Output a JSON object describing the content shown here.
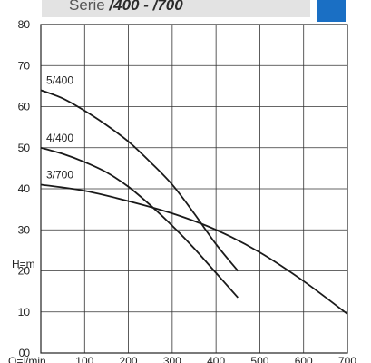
{
  "header": {
    "prefix": "Serie ",
    "model_range": "/400 - /700",
    "accent_color": "#1a6fc4"
  },
  "chart_data": {
    "type": "line",
    "title": "",
    "xlabel": "Q=l/min",
    "ylabel": "H=m",
    "xlim": [
      0,
      700
    ],
    "ylim": [
      0,
      80
    ],
    "x_ticks": [
      0,
      100,
      200,
      300,
      400,
      500,
      600,
      700
    ],
    "y_ticks": [
      0,
      10,
      20,
      30,
      40,
      50,
      60,
      70,
      80
    ],
    "grid": true,
    "series": [
      {
        "name": "5/400",
        "x": [
          0,
          50,
          100,
          150,
          200,
          250,
          300,
          350,
          400,
          450
        ],
        "y": [
          64,
          62,
          59,
          55.5,
          51.5,
          46.5,
          41,
          34,
          26.5,
          20
        ]
      },
      {
        "name": "4/400",
        "x": [
          0,
          50,
          100,
          150,
          200,
          250,
          300,
          350,
          400,
          450
        ],
        "y": [
          50,
          48.5,
          46.5,
          44,
          40.5,
          36,
          31,
          25.5,
          19.5,
          13.5
        ]
      },
      {
        "name": "3/700",
        "x": [
          0,
          100,
          200,
          300,
          400,
          500,
          600,
          700
        ],
        "y": [
          41,
          39.5,
          37,
          34,
          30,
          24.5,
          17.5,
          9.5
        ]
      }
    ]
  }
}
